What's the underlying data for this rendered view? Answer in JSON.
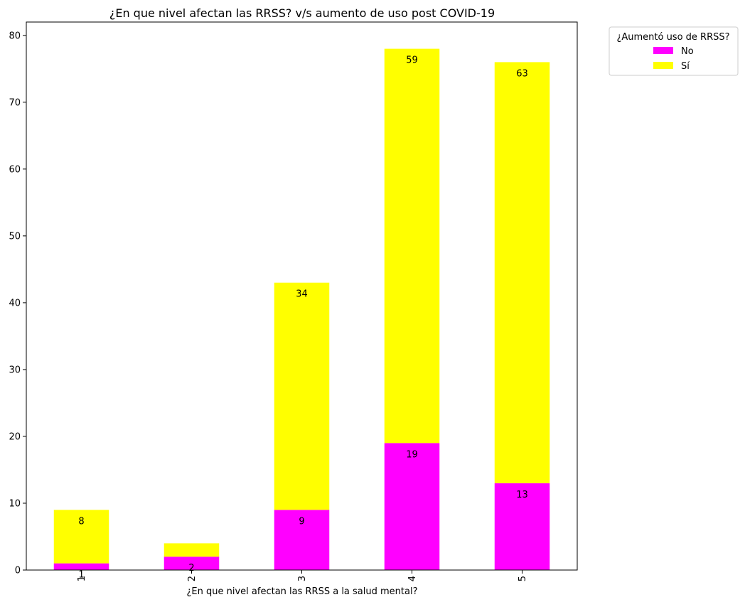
{
  "chart_data": {
    "type": "bar",
    "stacked": true,
    "title": "¿En que nivel afectan las RRSS? v/s aumento de uso post COVID-19",
    "xlabel": "¿En que nivel afectan las RRSS a la salud mental?",
    "ylabel": "",
    "categories": [
      "1",
      "2",
      "3",
      "4",
      "5"
    ],
    "series": [
      {
        "name": "No",
        "color": "#ff00ff",
        "values": [
          1,
          2,
          9,
          19,
          13
        ]
      },
      {
        "name": "Sí",
        "color": "#ffff00",
        "values": [
          8,
          2,
          34,
          59,
          63
        ]
      }
    ],
    "data_labels": {
      "No": [
        "1",
        "2",
        "9",
        "19",
        "13"
      ],
      "Sí": [
        "8",
        "",
        "34",
        "59",
        "63"
      ]
    },
    "ylim": [
      0,
      82
    ],
    "yticks": [
      0,
      10,
      20,
      30,
      40,
      50,
      60,
      70,
      80
    ],
    "legend": {
      "title": "¿Aumentó uso de RRSS?",
      "placement": "outside top-right"
    },
    "grid": false
  }
}
